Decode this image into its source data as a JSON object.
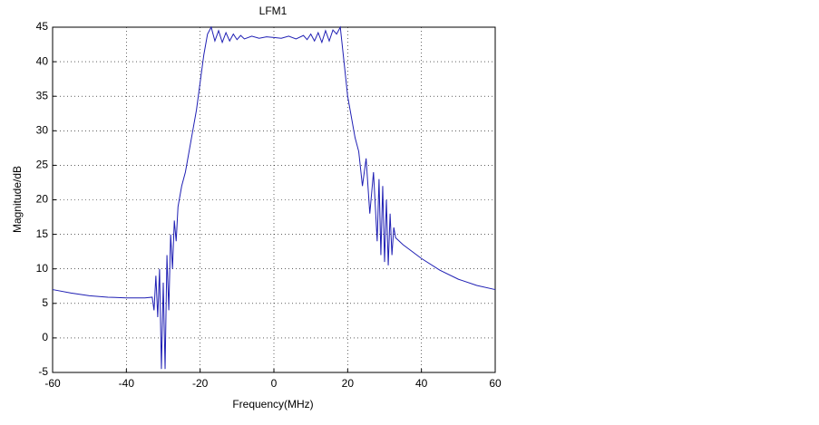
{
  "chart_data": {
    "type": "line",
    "title": "LFM1",
    "x_label": "Frequency(MHz)",
    "y_label": "Magnitude/dB",
    "x": [
      -60,
      -55,
      -50,
      -45,
      -40,
      -35,
      -33,
      -32.5,
      -32,
      -31.5,
      -31,
      -30.5,
      -30,
      -29.5,
      -29,
      -28.5,
      -28,
      -27.5,
      -27,
      -26.5,
      -26,
      -25,
      -24,
      -23,
      -22,
      -21,
      -20,
      -19,
      -18,
      -17,
      -16,
      -15,
      -14,
      -13,
      -12,
      -11,
      -10,
      -9,
      -8,
      -6,
      -4,
      -2,
      0,
      2,
      4,
      6,
      8,
      9,
      10,
      11,
      12,
      13,
      14,
      15,
      16,
      17,
      18,
      19,
      20,
      21,
      22,
      23,
      24,
      25,
      26,
      27,
      28,
      28.5,
      29,
      29.5,
      30,
      30.5,
      31,
      31.5,
      32,
      32.5,
      33,
      35,
      40,
      45,
      50,
      55,
      60
    ],
    "series": [
      {
        "color": "#1f1fb4",
        "values": [
          7,
          6.5,
          6.1,
          5.9,
          5.8,
          5.8,
          5.9,
          4,
          9,
          3,
          10,
          -4.5,
          8,
          -4.5,
          12,
          4,
          15,
          10,
          17,
          14,
          19,
          22,
          24,
          27,
          30,
          33,
          37,
          41,
          44,
          45,
          43,
          44.5,
          42.8,
          44.2,
          43,
          44,
          43.2,
          43.8,
          43.3,
          43.7,
          43.4,
          43.6,
          43.5,
          43.4,
          43.7,
          43.3,
          43.8,
          43.2,
          44,
          43,
          44.2,
          42.8,
          44.5,
          43,
          44.6,
          44,
          45,
          40,
          35,
          32,
          29,
          27,
          22,
          26,
          18,
          24,
          14,
          23,
          12,
          22,
          11,
          20,
          10.5,
          18,
          12,
          16,
          14.5,
          13.5,
          11.5,
          9.8,
          8.5,
          7.6,
          7
        ]
      }
    ],
    "xlim": [
      -60,
      60
    ],
    "xticks": [
      -60,
      -40,
      -20,
      0,
      20,
      40,
      60
    ],
    "ylim": [
      -5,
      45
    ],
    "yticks": [
      -5,
      0,
      5,
      10,
      15,
      20,
      25,
      30,
      35,
      40,
      45
    ],
    "grid": true
  }
}
